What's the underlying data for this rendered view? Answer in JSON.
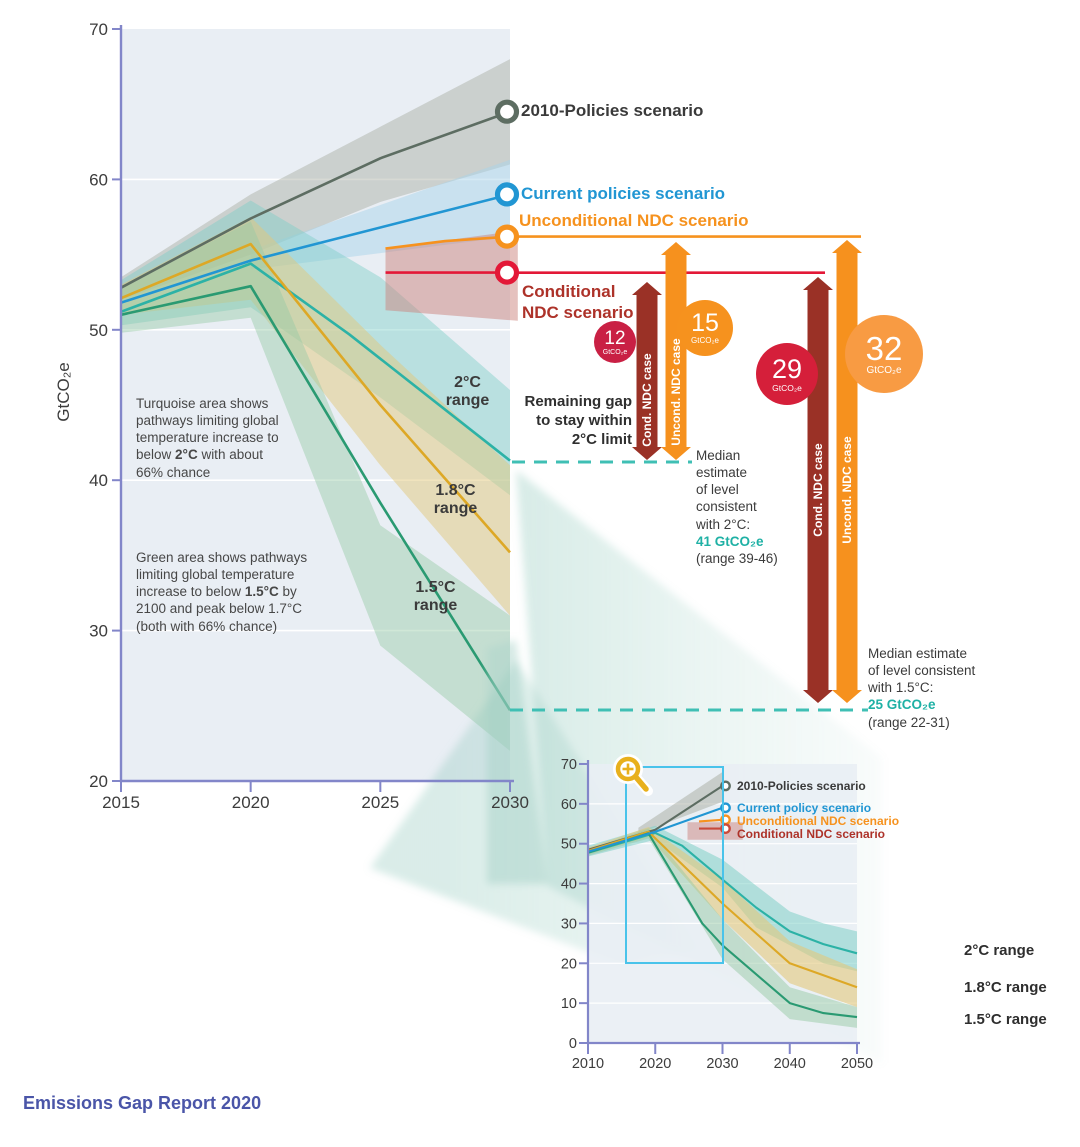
{
  "page": {
    "source_label": "Emissions Gap Report 2020"
  },
  "main": {
    "ylabel": "GtCO₂e",
    "scenarios": {
      "policies2010": "2010-Policies scenario",
      "current": "Current policies scenario",
      "uncond": "Unconditional NDC scenario",
      "cond_line1": "Conditional",
      "cond_line2": "NDC scenario"
    },
    "ranges": {
      "two_l1": "2°C",
      "two_l2": "range",
      "e18_l1": "1.8°C",
      "e18_l2": "range",
      "e15_l1": "1.5°C",
      "e15_l2": "range"
    },
    "notes": {
      "turquoise": {
        "l1": "Turquoise area shows",
        "l2": "pathways limiting global",
        "l3": "temperature increase to",
        "l4a": "below ",
        "l4b": "2°C",
        "l4c": " with about",
        "l5": "66% chance"
      },
      "green": {
        "l1": "Green area shows pathways",
        "l2": "limiting global temperature",
        "l3a": "increase to below ",
        "l3b": "1.5°C",
        "l3c": " by",
        "l4": "2100 and peak below 1.7°C",
        "l5": "(both with 66% chance)"
      }
    },
    "remaining_gap": {
      "l1": "Remaining gap",
      "l2": "to stay within",
      "l3": "2°C limit"
    },
    "median2": {
      "l1": "Median",
      "l2": "estimate",
      "l3": "of level",
      "l4": "consistent",
      "l5": "with 2°C:",
      "value": "41 GtCO₂e",
      "range": "(range 39-46)",
      "value_color": "#1fb1a5"
    },
    "median15": {
      "l1": "Median estimate",
      "l2": "of level consistent",
      "l3": "with 1.5°C:",
      "value": "25 GtCO₂e",
      "range": "(range 22-31)",
      "value_color": "#1fb1a5"
    },
    "arrows": {
      "cond": "Cond. NDC case",
      "uncond": "Uncond. NDC case"
    },
    "gaps": {
      "g12": {
        "value": "12",
        "unit": "GtCO₂e",
        "color": "#c92044"
      },
      "g15": {
        "value": "15",
        "unit": "GtCO₂e",
        "color": "#f6921e"
      },
      "g29": {
        "value": "29",
        "unit": "GtCO₂e",
        "color": "#d51f3a"
      },
      "g32": {
        "value": "32",
        "unit": "GtCO₂e",
        "color": "#f89b43"
      }
    }
  },
  "inset": {
    "scenarios": {
      "policies2010": "2010-Policies scenario",
      "current": "Current policy scenario",
      "uncond": "Unconditional NDC scenario",
      "cond": "Conditional NDC scenario"
    },
    "ranges": {
      "two": "2°C range",
      "e18": "1.8°C range",
      "e15": "1.5°C range"
    }
  },
  "colors": {
    "axis": "#8286c9",
    "plot_bg": "#e9eef4",
    "dashed": "#3fbfb4",
    "policies2010": "#5d6d62",
    "current": "#2196d3",
    "uncond": "#f6921e",
    "cond_line": "#e31837",
    "cond_text": "#ad3229",
    "two_deg": "#2cb2a6",
    "one_eight": "#dda826",
    "one_five": "#2a9a72",
    "arrow_dark_red": "#9a3126",
    "arrow_orange": "#f6911e",
    "source": "#4a55a8"
  },
  "chart_data": [
    {
      "id": "main",
      "type": "line",
      "title": "Global emissions pathways 2015-2030",
      "xlabel": "",
      "ylabel": "GtCO₂e",
      "xlim": [
        2015,
        2030
      ],
      "ylim": [
        20,
        70
      ],
      "x_ticks": [
        2015,
        2020,
        2025,
        2030
      ],
      "y_ticks": [
        70,
        60,
        50,
        40,
        30,
        20
      ],
      "series": [
        {
          "name": "2010-Policies scenario",
          "color": "#5d6d62",
          "marker_end": true,
          "x": [
            2015,
            2020,
            2025,
            2030
          ],
          "y": [
            52.8,
            57.4,
            61.4,
            64.5
          ],
          "band": {
            "x": [
              2015,
              2020,
              2025,
              2030
            ],
            "upper": [
              53.5,
              59,
              63.5,
              68
            ],
            "lower": [
              52,
              55,
              58.5,
              61
            ],
            "color": "#a7aba0",
            "opacity": 0.45
          }
        },
        {
          "name": "Current policies scenario",
          "color": "#2196d3",
          "marker_end": true,
          "x": [
            2015,
            2020,
            2030
          ],
          "y": [
            51.8,
            54.6,
            59
          ],
          "band": {
            "x": [
              2020,
              2025,
              2030
            ],
            "upper": [
              55.3,
              58.3,
              61.3
            ],
            "lower": [
              54,
              55.1,
              56.2
            ],
            "color": "#a9d4ea",
            "opacity": 0.5
          }
        },
        {
          "name": "2°C range median",
          "color": "#2cb2a6",
          "marker_end": false,
          "x": [
            2015,
            2020,
            2023.8,
            2030
          ],
          "y": [
            51.2,
            54.4,
            49.7,
            41.3
          ],
          "band": {
            "x": [
              2015,
              2020,
              2025,
              2030
            ],
            "upper": [
              53.3,
              58.6,
              53.5,
              46
            ],
            "lower": [
              50.3,
              51.5,
              45.5,
              39
            ],
            "color": "#7fcfc7",
            "opacity": 0.45
          }
        },
        {
          "name": "1.8°C range median",
          "color": "#dda826",
          "marker_end": false,
          "x": [
            2015,
            2020,
            2025,
            2030
          ],
          "y": [
            52.1,
            55.7,
            45,
            35.2
          ],
          "band": {
            "x": [
              2015,
              2020,
              2025,
              2030
            ],
            "upper": [
              53,
              57.5,
              49,
              41
            ],
            "lower": [
              51,
              52,
              41,
              31
            ],
            "color": "#e2c87c",
            "opacity": 0.5
          }
        },
        {
          "name": "1.5°C range median",
          "color": "#2a9a72",
          "marker_end": false,
          "x": [
            2015,
            2020,
            2025,
            2030
          ],
          "y": [
            51,
            52.9,
            38.5,
            24.7
          ],
          "band": {
            "x": [
              2015,
              2020,
              2025,
              2030
            ],
            "upper": [
              52.8,
              57.2,
              37,
              31
            ],
            "lower": [
              49.8,
              50.8,
              29,
              22
            ],
            "color": "#97caa6",
            "opacity": 0.45
          }
        },
        {
          "name": "Unconditional NDC scenario",
          "color": "#f6921e",
          "marker_end": true,
          "x": [
            2025.2,
            2027.5,
            2030
          ],
          "y": [
            55.4,
            55.9,
            56.2
          ],
          "band": null
        },
        {
          "name": "Conditional NDC scenario",
          "color": "#e31837",
          "marker_end": true,
          "x": [
            2025.2,
            2030
          ],
          "y": [
            53.8,
            53.8
          ],
          "band": {
            "x": [
              2025.2,
              2030.3
            ],
            "upper": [
              55.4,
              56.6
            ],
            "lower": [
              51.3,
              50.6
            ],
            "color": "#cb847e",
            "opacity": 0.5
          }
        }
      ],
      "annotations": {
        "gap_2c_gtco2e": {
          "cond_ndc": 12,
          "uncond_ndc": 15
        },
        "gap_15c_gtco2e": {
          "cond_ndc": 29,
          "uncond_ndc": 32
        },
        "median_2c": {
          "value": 41,
          "range": [
            39,
            46
          ]
        },
        "median_15c": {
          "value": 25,
          "range": [
            22,
            31
          ]
        },
        "dashed_levels": [
          41,
          25
        ]
      }
    },
    {
      "id": "overview",
      "type": "line",
      "title": "Emissions pathways 2010-2050 (overview)",
      "xlabel": "",
      "ylabel": "",
      "xlim": [
        2010,
        2050
      ],
      "ylim": [
        0,
        70
      ],
      "x_ticks": [
        2010,
        2020,
        2030,
        2040,
        2050
      ],
      "y_ticks": [
        70,
        60,
        50,
        40,
        30,
        20,
        10,
        0
      ],
      "zoom_box": {
        "x": [
          2015.6,
          2030
        ],
        "y": [
          20,
          70
        ]
      },
      "series": [
        {
          "name": "2010-Policies scenario",
          "color": "#5d6d62",
          "marker_end": true,
          "x": [
            2010,
            2020,
            2030
          ],
          "y": [
            48.5,
            53.5,
            64.5
          ],
          "band": {
            "x": [
              2017.5,
              2030
            ],
            "upper": [
              54,
              68
            ],
            "lower": [
              52.5,
              60.5
            ],
            "color": "#a7aba0",
            "opacity": 0.5
          }
        },
        {
          "name": "2°C range median",
          "color": "#2cb2a6",
          "marker_end": false,
          "x": [
            2010,
            2020,
            2024,
            2030,
            2035,
            2040,
            2045,
            2050
          ],
          "y": [
            47.7,
            52.7,
            49.5,
            41,
            34,
            28,
            24.8,
            22.5
          ],
          "band": {
            "x": [
              2010,
              2020,
              2030,
              2035,
              2040,
              2045,
              2050
            ],
            "upper": [
              49.5,
              54.5,
              46,
              39.5,
              33,
              30,
              28
            ],
            "lower": [
              46.8,
              51,
              39,
              29,
              24.5,
              20,
              18
            ],
            "color": "#7fcfc7",
            "opacity": 0.55
          }
        },
        {
          "name": "1.8°C range median",
          "color": "#dda826",
          "marker_end": false,
          "x": [
            2010,
            2019,
            2030,
            2040,
            2050
          ],
          "y": [
            48.2,
            53,
            35,
            20,
            14
          ],
          "band": {
            "x": [
              2010,
              2019,
              2030,
              2040,
              2050
            ],
            "upper": [
              49,
              54.2,
              41,
              25.5,
              18.5
            ],
            "lower": [
              47.3,
              51.7,
              31,
              15,
              9
            ],
            "color": "#e2c87c",
            "opacity": 0.6
          }
        },
        {
          "name": "1.5°C range median",
          "color": "#2a9a72",
          "marker_end": false,
          "x": [
            2010,
            2019,
            2027,
            2030,
            2040,
            2045,
            2050
          ],
          "y": [
            47.8,
            52.6,
            30,
            24.5,
            10,
            7.5,
            6.5
          ],
          "band": {
            "x": [
              2010,
              2019,
              2030,
              2040,
              2050
            ],
            "upper": [
              48.6,
              53.8,
              31,
              14,
              9
            ],
            "lower": [
              47,
              51.3,
              21,
              6,
              3.8
            ],
            "color": "#97caa6",
            "opacity": 0.5
          }
        },
        {
          "name": "Current policy scenario",
          "color": "#2196d3",
          "marker_end": true,
          "x": [
            2010,
            2020,
            2030
          ],
          "y": [
            48,
            53,
            59
          ],
          "band": null
        },
        {
          "name": "Unconditional NDC scenario",
          "color": "#f6921e",
          "marker_end": true,
          "x": [
            2026.5,
            2030
          ],
          "y": [
            55.6,
            56
          ],
          "band": null
        },
        {
          "name": "Conditional NDC scenario",
          "color": "#c74a3c",
          "marker_end": true,
          "x": [
            2026.5,
            2030
          ],
          "y": [
            53.8,
            53.8
          ],
          "band": {
            "x": [
              2024.8,
              2033
            ],
            "upper": [
              55.4,
              55.4
            ],
            "lower": [
              51,
              51
            ],
            "color": "#cb847e",
            "opacity": 0.5
          }
        }
      ]
    }
  ]
}
